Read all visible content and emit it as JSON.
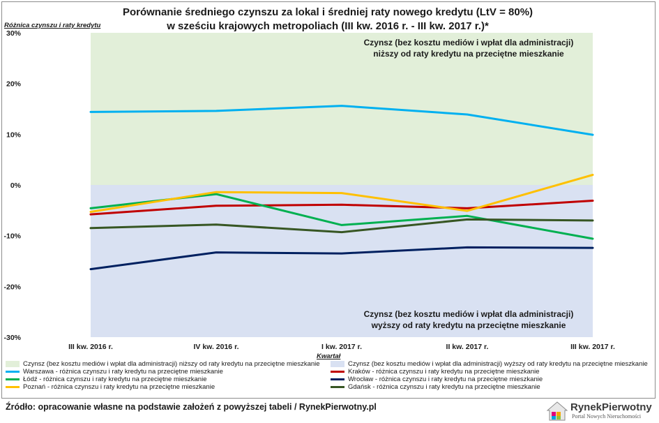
{
  "chart_data": {
    "type": "line",
    "title_line1": "Porównanie średniego czynszu za lokal i średniej raty nowego kredytu (LtV = 80%)",
    "title_line2": "w sześciu krajowych metropoliach (III kw. 2016 r. - III kw. 2017 r.)*",
    "ylabel": "Różnica czynszu i raty kredytu",
    "xlabel": "Kwartał",
    "ylim": [
      -30,
      30
    ],
    "yticks": [
      30,
      20,
      10,
      0,
      -10,
      -20,
      -30
    ],
    "ytick_labels": [
      "30%",
      "20%",
      "10%",
      "0%",
      "-10%",
      "-20%",
      "-30%"
    ],
    "categories": [
      "III kw. 2016 r.",
      "IV kw. 2016 r.",
      "I kw. 2017 r.",
      "II kw. 2017 r.",
      "III kw. 2017 r."
    ],
    "regions": [
      {
        "name": "Czynsz (bez kosztu mediów i wpłat dla administracji) niższy od raty kredytu na przeciętne mieszkanie",
        "from": 0,
        "to": 30,
        "color": "#e2efd9"
      },
      {
        "name": "Czynsz (bez kosztu mediów i wpłat dla administracji) wyższy od raty kredytu na przeciętne mieszkanie",
        "from": -30,
        "to": 0,
        "color": "#d9e1f2"
      }
    ],
    "annotations": {
      "top_line1": "Czynsz (bez kosztu mediów i wpłat dla administracji)",
      "top_line2": "niższy od raty kredytu na przeciętne mieszkanie",
      "bottom_line1": "Czynsz (bez kosztu mediów i wpłat dla administracji)",
      "bottom_line2": "wyższy od raty kredytu na przeciętne mieszkanie"
    },
    "series": [
      {
        "name": "Warszawa - różnica czynszu i raty kredytu na przeciętne mieszkanie",
        "color": "#00b0f0",
        "values": [
          14.4,
          14.6,
          15.6,
          13.9,
          9.9
        ]
      },
      {
        "name": "Kraków - różnica czynszu i raty kredytu na przeciętne mieszkanie",
        "color": "#c00000",
        "values": [
          -5.8,
          -4.1,
          -3.9,
          -4.6,
          -3.1
        ]
      },
      {
        "name": "Łódź - różnica czynszu i raty kredytu na przeciętne mieszkanie",
        "color": "#00b050",
        "values": [
          -4.6,
          -1.8,
          -7.9,
          -6.1,
          -10.6
        ]
      },
      {
        "name": "Wrocław - różnica czynszu i raty kredytu na przeciętne mieszkanie",
        "color": "#002060",
        "values": [
          -16.6,
          -13.3,
          -13.5,
          -12.3,
          -12.4
        ]
      },
      {
        "name": "Poznań - różnica czynszu i raty kredytu na przeciętne mieszkanie",
        "color": "#ffc000",
        "values": [
          -5.3,
          -1.4,
          -1.6,
          -5.1,
          2.0
        ]
      },
      {
        "name": "Gdańsk - różnica czynszu i raty kredytu na przeciętne mieszkanie",
        "color": "#375623",
        "values": [
          -8.5,
          -7.8,
          -9.3,
          -6.8,
          -7.0
        ]
      }
    ],
    "legend_position": "bottom"
  },
  "source": "Źródło: opracowanie własne na podstawie założeń z powyższej tabeli / RynekPierwotny.pl",
  "logo": {
    "name": "RynekPierwotny",
    "tagline": "Portal Nowych Nieruchomości"
  }
}
